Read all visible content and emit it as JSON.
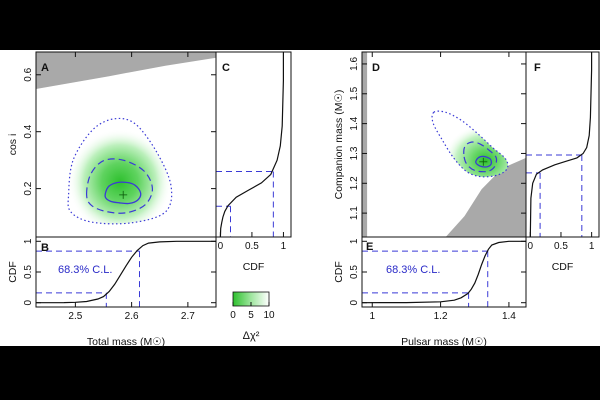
{
  "colors": {
    "background": "#000000",
    "panel": "#ffffff",
    "excluded_region": "#a9a9a9",
    "cl_lines": "#3a3ad6",
    "cl_text": "#2a2ac8",
    "heat_high": "#2ec02e",
    "heat_low": "#ffffff",
    "contour_dotted": "#3a3ad6"
  },
  "labels": {
    "panel_A": "A",
    "panel_B": "B",
    "panel_C": "C",
    "panel_D": "D",
    "panel_E": "E",
    "panel_F": "F",
    "cl_left": "68.3% C.L.",
    "cl_right": "68.3% C.L.",
    "colorbar_label": "Δχ²"
  },
  "chart_data": [
    {
      "id": "A",
      "type": "heatmap",
      "xlabel": "",
      "ylabel": "cos i",
      "xlim": [
        2.43,
        2.75
      ],
      "ylim": [
        0.03,
        0.68
      ],
      "yticks": [
        {
          "v": 0.2,
          "t": "0.2"
        },
        {
          "v": 0.4,
          "t": "0.4"
        },
        {
          "v": 0.6,
          "t": "0.6"
        }
      ],
      "peak": {
        "x": 2.585,
        "y": 0.178
      },
      "contours": [
        {
          "level": "1-sigma",
          "style": "solid",
          "points": [
            [
              2.553,
              0.172
            ],
            [
              2.558,
              0.205
            ],
            [
              2.572,
              0.22
            ],
            [
              2.59,
              0.222
            ],
            [
              2.606,
              0.212
            ],
            [
              2.616,
              0.185
            ],
            [
              2.611,
              0.16
            ],
            [
              2.596,
              0.148
            ],
            [
              2.578,
              0.15
            ],
            [
              2.562,
              0.156
            ]
          ]
        },
        {
          "level": "2-sigma",
          "style": "dashed",
          "points": [
            [
              2.52,
              0.18
            ],
            [
              2.527,
              0.25
            ],
            [
              2.55,
              0.298
            ],
            [
              2.585,
              0.3
            ],
            [
              2.622,
              0.262
            ],
            [
              2.637,
              0.2
            ],
            [
              2.624,
              0.143
            ],
            [
              2.59,
              0.115
            ],
            [
              2.554,
              0.12
            ],
            [
              2.528,
              0.142
            ]
          ]
        },
        {
          "level": "3-sigma",
          "style": "dotted",
          "points": [
            [
              2.488,
              0.18
            ],
            [
              2.496,
              0.3
            ],
            [
              2.53,
              0.405
            ],
            [
              2.568,
              0.445
            ],
            [
              2.606,
              0.428
            ],
            [
              2.644,
              0.33
            ],
            [
              2.67,
              0.21
            ],
            [
              2.66,
              0.118
            ],
            [
              2.6,
              0.08
            ],
            [
              2.53,
              0.082
            ],
            [
              2.492,
              0.118
            ]
          ]
        }
      ],
      "excluded_region": [
        [
          2.43,
          0.55
        ],
        [
          2.56,
          0.595
        ],
        [
          2.66,
          0.632
        ],
        [
          2.75,
          0.66
        ],
        [
          2.75,
          0.68
        ],
        [
          2.43,
          0.68
        ]
      ]
    },
    {
      "id": "B",
      "type": "line",
      "xlabel": "Total mass (M☉)",
      "ylabel": "CDF",
      "xlim": [
        2.43,
        2.75
      ],
      "ylim": [
        -0.07,
        1.07
      ],
      "xticks": [
        {
          "v": 2.5,
          "t": "2.5"
        },
        {
          "v": 2.6,
          "t": "2.6"
        },
        {
          "v": 2.7,
          "t": "2.7"
        }
      ],
      "yticks": [
        {
          "v": 0,
          "t": "0"
        },
        {
          "v": 0.5,
          "t": "0.5"
        },
        {
          "v": 1,
          "t": "1"
        }
      ],
      "series": [
        {
          "x": [
            2.43,
            2.48,
            2.5,
            2.52,
            2.54,
            2.55,
            2.56,
            2.57,
            2.58,
            2.59,
            2.6,
            2.61,
            2.62,
            2.63,
            2.65,
            2.68,
            2.75
          ],
          "y": [
            0,
            0.002,
            0.006,
            0.02,
            0.06,
            0.1,
            0.18,
            0.3,
            0.45,
            0.6,
            0.74,
            0.85,
            0.93,
            0.97,
            0.99,
            1.0,
            1.0
          ]
        }
      ],
      "cl_lower": {
        "cdf": 0.16,
        "value": 2.555
      },
      "cl_upper": {
        "cdf": 0.84,
        "value": 2.614
      }
    },
    {
      "id": "C",
      "type": "line",
      "xlabel": "CDF",
      "ylabel": "",
      "xlim": [
        -0.07,
        1.12
      ],
      "ylim": [
        0.03,
        0.68
      ],
      "xticks": [
        {
          "v": 0,
          "t": "0"
        },
        {
          "v": 0.5,
          "t": "0.5"
        },
        {
          "v": 1,
          "t": "1"
        }
      ],
      "series": [
        {
          "x": [
            0,
            0.005,
            0.02,
            0.04,
            0.07,
            0.12,
            0.25,
            0.45,
            0.65,
            0.8,
            0.9,
            0.95,
            0.98,
            0.99,
            1.0,
            1.0
          ],
          "y": [
            0.03,
            0.06,
            0.08,
            0.1,
            0.12,
            0.14,
            0.17,
            0.195,
            0.22,
            0.25,
            0.3,
            0.35,
            0.42,
            0.5,
            0.58,
            0.68
          ]
        }
      ],
      "cl_lower": {
        "cdf": 0.16,
        "value": 0.138
      },
      "cl_upper": {
        "cdf": 0.84,
        "value": 0.26
      }
    },
    {
      "id": "D",
      "type": "heatmap",
      "xlabel": "",
      "ylabel": "Companion mass (M☉)",
      "xlim": [
        0.97,
        1.45
      ],
      "ylim": [
        1.02,
        1.64
      ],
      "yticks": [
        {
          "v": 1.1,
          "t": "1.1"
        },
        {
          "v": 1.2,
          "t": "1.2"
        },
        {
          "v": 1.3,
          "t": "1.3"
        },
        {
          "v": 1.4,
          "t": "1.4"
        },
        {
          "v": 1.5,
          "t": "1.5"
        },
        {
          "v": 1.6,
          "t": "1.6"
        }
      ],
      "peak": {
        "x": 1.325,
        "y": 1.272
      },
      "contours": [
        {
          "level": "1-sigma",
          "style": "solid",
          "points": [
            [
              1.303,
              1.27
            ],
            [
              1.31,
              1.285
            ],
            [
              1.325,
              1.29
            ],
            [
              1.345,
              1.282
            ],
            [
              1.348,
              1.265
            ],
            [
              1.335,
              1.255
            ],
            [
              1.315,
              1.258
            ]
          ]
        },
        {
          "level": "2-sigma",
          "style": "dashed",
          "points": [
            [
              1.268,
              1.298
            ],
            [
              1.272,
              1.325
            ],
            [
              1.29,
              1.338
            ],
            [
              1.315,
              1.332
            ],
            [
              1.343,
              1.31
            ],
            [
              1.363,
              1.285
            ],
            [
              1.358,
              1.256
            ],
            [
              1.337,
              1.24
            ],
            [
              1.3,
              1.243
            ],
            [
              1.276,
              1.265
            ]
          ]
        },
        {
          "level": "3-sigma",
          "style": "dotted",
          "points": [
            [
              1.18,
              1.438
            ],
            [
              1.215,
              1.438
            ],
            [
              1.262,
              1.41
            ],
            [
              1.31,
              1.365
            ],
            [
              1.352,
              1.32
            ],
            [
              1.39,
              1.282
            ],
            [
              1.395,
              1.25
            ],
            [
              1.368,
              1.228
            ],
            [
              1.32,
              1.222
            ],
            [
              1.278,
              1.238
            ],
            [
              1.24,
              1.282
            ],
            [
              1.205,
              1.345
            ],
            [
              1.178,
              1.402
            ]
          ]
        }
      ],
      "excluded_region": [
        [
          1.215,
          1.02
        ],
        [
          1.45,
          1.02
        ],
        [
          1.45,
          1.285
        ],
        [
          1.38,
          1.25
        ],
        [
          1.32,
          1.18
        ],
        [
          1.27,
          1.09
        ]
      ],
      "excluded_region_left": [
        [
          0.97,
          1.02
        ],
        [
          0.985,
          1.02
        ],
        [
          0.985,
          1.64
        ],
        [
          0.97,
          1.64
        ]
      ]
    },
    {
      "id": "E",
      "type": "line",
      "xlabel": "Pulsar mass (M☉)",
      "ylabel": "CDF",
      "xlim": [
        0.97,
        1.45
      ],
      "ylim": [
        -0.07,
        1.07
      ],
      "xticks": [
        {
          "v": 1.0,
          "t": "1"
        },
        {
          "v": 1.2,
          "t": "1.2"
        },
        {
          "v": 1.4,
          "t": "1.4"
        }
      ],
      "yticks": [
        {
          "v": 0,
          "t": "0"
        },
        {
          "v": 0.5,
          "t": "0.5"
        },
        {
          "v": 1,
          "t": "1"
        }
      ],
      "series": [
        {
          "x": [
            0.97,
            1.1,
            1.2,
            1.24,
            1.26,
            1.28,
            1.29,
            1.3,
            1.31,
            1.32,
            1.33,
            1.34,
            1.35,
            1.37,
            1.4,
            1.45
          ],
          "y": [
            0,
            0.002,
            0.015,
            0.04,
            0.08,
            0.15,
            0.22,
            0.32,
            0.46,
            0.62,
            0.76,
            0.87,
            0.94,
            0.98,
            1.0,
            1.0
          ]
        }
      ],
      "cl_lower": {
        "cdf": 0.16,
        "value": 1.282
      },
      "cl_upper": {
        "cdf": 0.84,
        "value": 1.338
      }
    },
    {
      "id": "F",
      "type": "line",
      "xlabel": "CDF",
      "ylabel": "",
      "xlim": [
        -0.07,
        1.12
      ],
      "ylim": [
        1.02,
        1.64
      ],
      "xticks": [
        {
          "v": 0,
          "t": "0"
        },
        {
          "v": 0.5,
          "t": "0.5"
        },
        {
          "v": 1,
          "t": "1"
        }
      ],
      "series": [
        {
          "x": [
            0,
            0.01,
            0.04,
            0.1,
            0.2,
            0.4,
            0.6,
            0.76,
            0.86,
            0.92,
            0.96,
            0.98,
            0.99,
            1.0,
            1.0
          ],
          "y": [
            1.02,
            1.15,
            1.2,
            1.23,
            1.245,
            1.262,
            1.275,
            1.285,
            1.3,
            1.32,
            1.36,
            1.42,
            1.5,
            1.58,
            1.64
          ]
        }
      ],
      "cl_lower": {
        "cdf": 0.16,
        "value": 1.235
      },
      "cl_upper": {
        "cdf": 0.84,
        "value": 1.295
      }
    },
    {
      "id": "colorbar",
      "type": "heatmap",
      "xlabel": "Δχ²",
      "xlim": [
        0,
        10
      ],
      "xticks": [
        {
          "v": 0,
          "t": "0"
        },
        {
          "v": 5,
          "t": "5"
        },
        {
          "v": 10,
          "t": "10"
        }
      ]
    }
  ]
}
